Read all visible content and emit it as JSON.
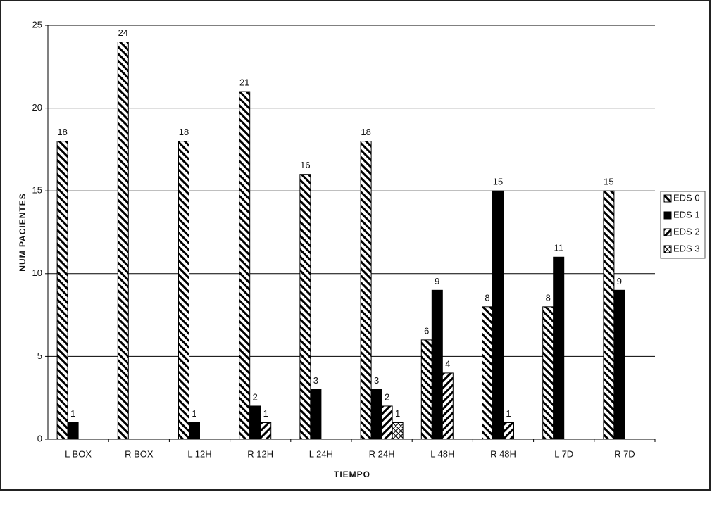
{
  "chart_data": {
    "type": "bar",
    "x_label": "TIEMPO",
    "y_label": "NUM PACIENTES",
    "categories": [
      "L BOX",
      "R BOX",
      "L 12H",
      "R 12H",
      "L 24H",
      "R 24H",
      "L 48H",
      "R 48H",
      "L 7D",
      "R 7D"
    ],
    "series": [
      {
        "name": "EDS 0",
        "color": "#000000",
        "pattern": "back-diagonal",
        "values": [
          18,
          24,
          18,
          21,
          16,
          18,
          6,
          8,
          8,
          15
        ]
      },
      {
        "name": "EDS 1",
        "color": "#000000",
        "pattern": "solid",
        "values": [
          1,
          null,
          1,
          2,
          3,
          3,
          9,
          15,
          11,
          9
        ]
      },
      {
        "name": "EDS 2",
        "color": "#000000",
        "pattern": "diagonal",
        "values": [
          null,
          null,
          null,
          1,
          null,
          2,
          4,
          1,
          null,
          null
        ]
      },
      {
        "name": "EDS 3",
        "color": "#000000",
        "pattern": "crosshatch",
        "values": [
          null,
          null,
          null,
          null,
          null,
          1,
          null,
          null,
          null,
          null
        ]
      }
    ],
    "ylim": [
      0,
      25
    ],
    "yticks": [
      0,
      5,
      10,
      15,
      20,
      25
    ],
    "grid": true,
    "legend": "right"
  }
}
